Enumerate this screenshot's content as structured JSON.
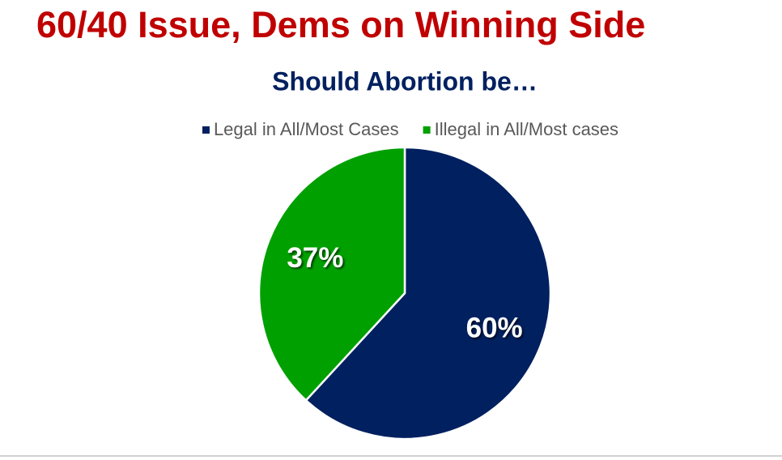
{
  "chart_data": {
    "type": "pie",
    "title": "60/40 Issue, Dems on Winning Side",
    "subtitle": "Should Abortion be…",
    "categories": [
      "Legal in All/Most Cases",
      "Illegal in All/Most cases"
    ],
    "values": [
      60,
      37
    ],
    "value_labels": [
      "60%",
      "37%"
    ],
    "colors": [
      "#002060",
      "#00a000"
    ],
    "legend": "top"
  }
}
